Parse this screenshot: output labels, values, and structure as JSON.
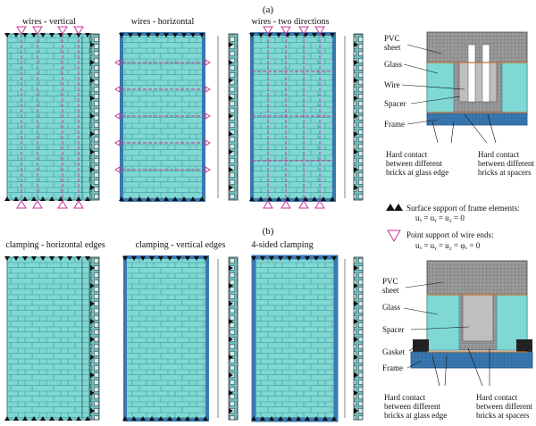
{
  "panel_labels": {
    "a": "(a)",
    "b": "(b)"
  },
  "row_a": {
    "titles": [
      "wires - vertical",
      "wires - horizontal",
      "wires - two directions"
    ]
  },
  "row_b": {
    "titles": [
      "clamping - horizontal edges",
      "clamping - vertical edges",
      "4-sided clamping"
    ]
  },
  "legend": {
    "surface_support_line1": "Surface support of frame elements:",
    "surface_support_line2": "uₓ = uᵧ = u₂ = 0",
    "point_support_line1": "Point support of wire ends:",
    "point_support_line2": "uₓ = uᵧ = u₂ = φₓ = 0"
  },
  "detail_a": {
    "labels": [
      "PVC",
      "sheet",
      "Glass",
      "Wire",
      "Spacer",
      "Frame"
    ],
    "contact_left": [
      "Hard contact",
      "between different",
      "bricks at glass edge"
    ],
    "contact_right": [
      "Hard contact",
      "between different",
      "bricks at spacers"
    ]
  },
  "detail_b": {
    "labels": [
      "PVC",
      "sheet",
      "Glass",
      "Spacer",
      "Gasket",
      "Frame"
    ],
    "contact_left": [
      "Hard contact",
      "between different",
      "bricks at glass edge"
    ],
    "contact_right": [
      "Hard contact",
      "between different",
      "bricks at spacers"
    ]
  },
  "colors": {
    "glass": "#7fd8d4",
    "brick_line": "#2f8a8a",
    "frame_blue": "#3a78b0",
    "wire": "#cc3399",
    "support": "#111111",
    "detail_grey": "#8a8a8a"
  },
  "icons": {
    "surface_support": "filled-triangle-icon",
    "point_support": "open-triangle-icon"
  }
}
